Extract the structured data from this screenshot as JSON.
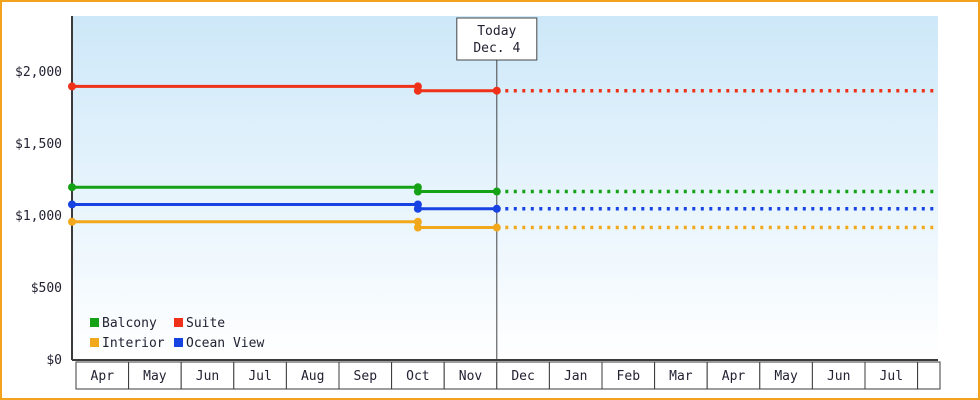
{
  "frame": {
    "border_color": "#f2a21d",
    "background": "#ffffff"
  },
  "chart_data": {
    "type": "line",
    "plot": {
      "bg_gradient_top": "#cde8f9",
      "bg_gradient_bottom": "#ffffff",
      "axis_color": "#3b3b3b",
      "grid": false,
      "legend_position": "bottom-left-inside"
    },
    "y_axis": {
      "ticks": [
        {
          "label": "$0",
          "value": 0
        },
        {
          "label": "$500",
          "value": 500
        },
        {
          "label": "$1,000",
          "value": 1000
        },
        {
          "label": "$1,500",
          "value": 1500
        },
        {
          "label": "$2,000",
          "value": 2000
        }
      ],
      "ylim": [
        0,
        2400
      ]
    },
    "x_axis": {
      "months": [
        "Apr",
        "May",
        "Jun",
        "Jul",
        "Aug",
        "Sep",
        "Oct",
        "Nov",
        "Dec",
        "Jan",
        "Feb",
        "Mar",
        "Apr",
        "May",
        "Jun",
        "Jul"
      ]
    },
    "today": {
      "label_line1": "Today",
      "label_line2": "Dec. 4",
      "month_index": 8
    },
    "series": [
      {
        "name": "Balcony",
        "color": "#16a216",
        "initial_value": 1200,
        "current_value": 1170,
        "change_month_index": 6.5
      },
      {
        "name": "Suite",
        "color": "#ee3118",
        "initial_value": 1900,
        "current_value": 1870,
        "change_month_index": 6.5
      },
      {
        "name": "Interior",
        "color": "#f2a81c",
        "initial_value": 960,
        "current_value": 920,
        "change_month_index": 6.5
      },
      {
        "name": "Ocean View",
        "color": "#1743e3",
        "initial_value": 1080,
        "current_value": 1050,
        "change_month_index": 6.5
      }
    ],
    "legend": {
      "rows": [
        [
          "Balcony",
          "Suite"
        ],
        [
          "Interior",
          "Ocean View"
        ]
      ]
    }
  }
}
